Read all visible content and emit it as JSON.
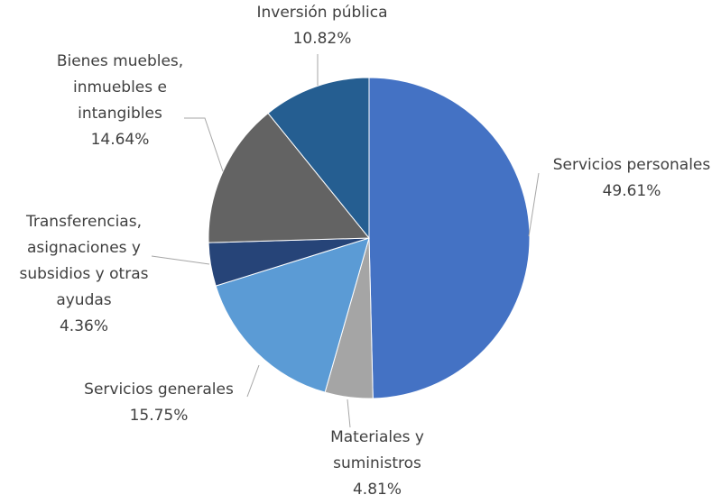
{
  "chart_data": {
    "type": "pie",
    "categories": [
      "Servicios personales",
      "Materiales y suministros",
      "Servicios generales",
      "Transferencias, asignaciones y subsidios y otras ayudas",
      "Bienes muebles, inmuebles e intangibles",
      "Inversión pública"
    ],
    "values": [
      49.61,
      4.81,
      15.75,
      4.36,
      14.64,
      10.82
    ],
    "value_labels": [
      "49.61%",
      "4.81%",
      "15.75%",
      "4.36%",
      "14.64%",
      "10.82%"
    ],
    "colors": [
      "#4472c4",
      "#a5a5a5",
      "#5b9bd5",
      "#264478",
      "#636363",
      "#255e91"
    ]
  }
}
